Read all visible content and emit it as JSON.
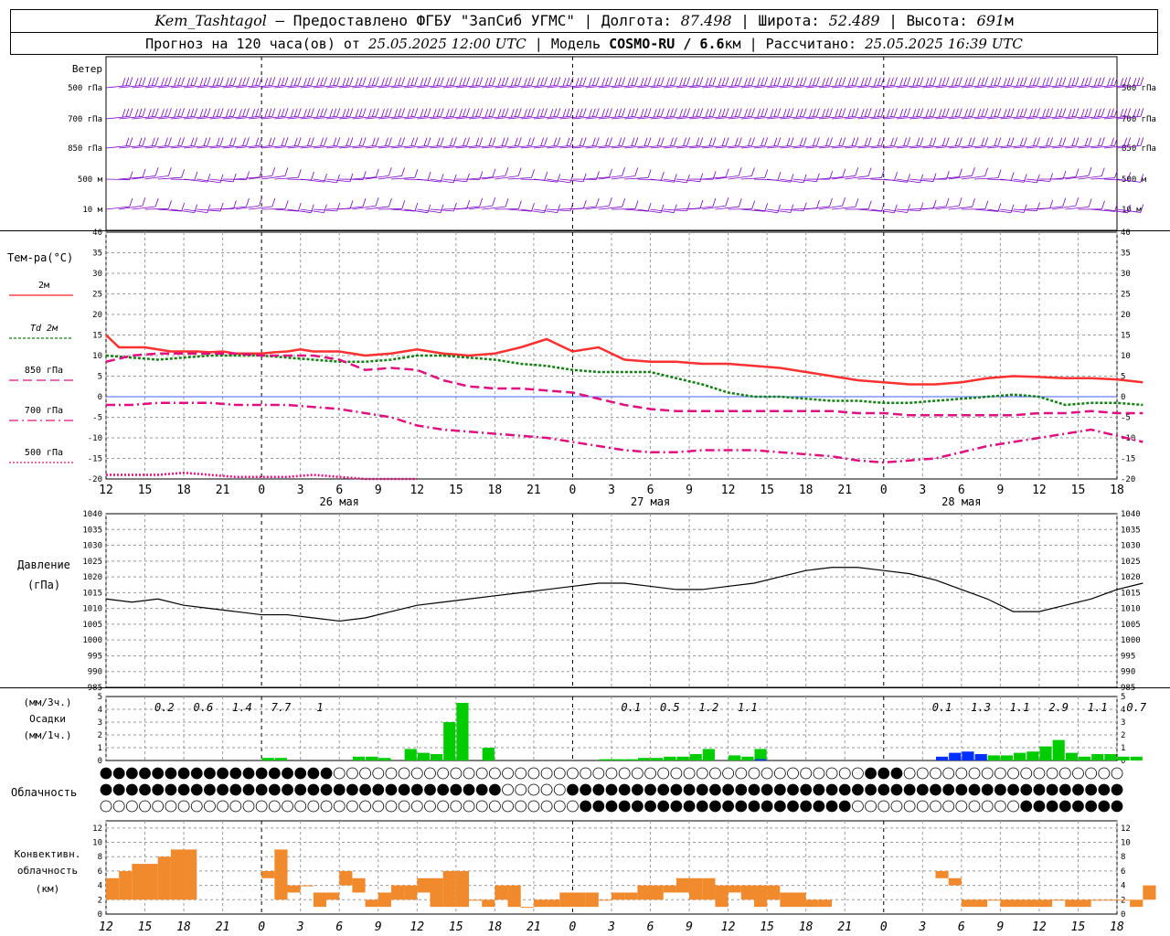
{
  "header": {
    "station": "Kem_Tashtagol",
    "sep1": " — Предоставлено ФГБУ \"ЗапСиб УГМС\" | Долгота: ",
    "lon": "87.498",
    "sep2": " | Широта: ",
    "lat": "52.489",
    "sep3": " | Высота: ",
    "alt": "691",
    "alt_unit": "м",
    "fc_prefix": "Прогноз на 120 часа(ов) от ",
    "fc_time": "25.05.2025 12:00 UTC",
    "model_prefix": "  | Модель ",
    "model": "COSMO-RU / 6.6",
    "model_unit": "км",
    "calc_prefix": " | Рассчитано: ",
    "calc_time": "25.05.2025 16:39 UTC"
  },
  "time_axis": {
    "hour_labels": [
      "12",
      "15",
      "18",
      "21",
      "0",
      "3",
      "6",
      "9",
      "12",
      "15",
      "18",
      "21",
      "0",
      "3",
      "6",
      "9",
      "12",
      "15",
      "18",
      "21",
      "0",
      "3",
      "6",
      "9",
      "12",
      "15",
      "18"
    ],
    "day_labels": [
      {
        "label": "26 мая",
        "x": 18
      },
      {
        "label": "27 мая",
        "x": 42
      },
      {
        "label": "28 мая",
        "x": 66
      }
    ]
  },
  "wind_panel": {
    "title": "Ветер",
    "levels_left": [
      "500 гПа",
      "700 гПа",
      "850 гПа",
      "500 м",
      "10  м"
    ],
    "levels_right": [
      "500 гПа",
      "700 гПа",
      "850 гПа",
      "500 м",
      "10 м"
    ],
    "colors": {
      "barb": "#7a00c8",
      "line": "#7a00c8"
    }
  },
  "temp_panel": {
    "title": "Тем-ра(°C)",
    "legend": [
      {
        "label": "2м",
        "color": "#ff2020",
        "dash": ""
      },
      {
        "label": "Td  2м",
        "color": "#108010",
        "dash": "3,2"
      },
      {
        "label": "850 гПа",
        "color": "#e01080",
        "dash": "10,5"
      },
      {
        "label": "700 гПа",
        "color": "#e01080",
        "dash": "10,4,2,4"
      },
      {
        "label": "500 гПа",
        "color": "#e01080",
        "dash": "2,2"
      }
    ],
    "yticks": [
      "40",
      "35",
      "30",
      "25",
      "20",
      "15",
      "10",
      "5",
      "0",
      "-5",
      "-10",
      "-15",
      "-20"
    ]
  },
  "pressure_panel": {
    "title": "Давление",
    "unit": "(гПа)",
    "yticks": [
      "1040",
      "1035",
      "1030",
      "1025",
      "1020",
      "1015",
      "1010",
      "1005",
      "1000",
      "995",
      "990",
      "985"
    ]
  },
  "precip_panel": {
    "unit_top": "(мм/3ч.)",
    "title": "Осадки",
    "unit_bottom": "(мм/1ч.)",
    "yticks": [
      "5",
      "4",
      "3",
      "2",
      "1",
      "0"
    ],
    "totals": [
      {
        "x": 4.5,
        "label": "0.2"
      },
      {
        "x": 7.5,
        "label": "0.6"
      },
      {
        "x": 10.5,
        "label": "1.4"
      },
      {
        "x": 13.5,
        "label": "7.7"
      },
      {
        "x": 16.5,
        "label": "1"
      },
      {
        "x": 40.5,
        "label": "0.1"
      },
      {
        "x": 43.5,
        "label": "0.5"
      },
      {
        "x": 46.5,
        "label": "1.2"
      },
      {
        "x": 49.5,
        "label": "1.1"
      },
      {
        "x": 64.5,
        "label": "0.1"
      },
      {
        "x": 67.5,
        "label": "1.3"
      },
      {
        "x": 70.5,
        "label": "1.1"
      },
      {
        "x": 73.5,
        "label": "2.9"
      },
      {
        "x": 76.5,
        "label": "1.1"
      },
      {
        "x": 79.5,
        "label": "0.7"
      }
    ]
  },
  "cloud_panel": {
    "title": "Облачность"
  },
  "conv_panel": {
    "title_1": "Конвективн.",
    "title_2": "облачность",
    "unit": "(км)",
    "yticks": [
      "12",
      "10",
      "8",
      "6",
      "4",
      "2",
      "0"
    ]
  },
  "chart_data": [
    {
      "type": "line",
      "name": "temperature",
      "x_unit": "hours from 25.05.2025 12:00 UTC",
      "ylim": [
        -20,
        40
      ],
      "series": [
        {
          "name": "2м",
          "x": [
            0,
            1,
            2,
            3,
            4,
            5,
            6,
            7,
            8,
            9,
            10,
            11,
            12,
            13,
            14,
            15,
            16,
            17,
            18,
            19,
            20,
            22,
            24,
            26,
            28,
            30,
            32,
            34,
            36,
            38,
            40,
            42,
            44,
            46,
            48,
            50,
            52,
            54,
            56,
            58,
            60,
            62,
            64,
            66,
            68,
            70,
            72,
            74,
            76,
            78,
            80
          ],
          "y": [
            15,
            12,
            12,
            12,
            11.5,
            11,
            11,
            11,
            10.8,
            11,
            10.5,
            10.5,
            10.5,
            10.8,
            11,
            11.5,
            11,
            11,
            11,
            10.5,
            10,
            10.5,
            11.5,
            10.5,
            10,
            10.5,
            12,
            14,
            11,
            12,
            9,
            8.5,
            8.5,
            8,
            8,
            7.5,
            7,
            6,
            5,
            4,
            3.5,
            3,
            3,
            3.5,
            4.5,
            5,
            4.8,
            4.5,
            4.5,
            4.2,
            3.5
          ]
        },
        {
          "name": "Td 2м",
          "x": [
            0,
            2,
            4,
            6,
            8,
            10,
            12,
            14,
            16,
            18,
            20,
            22,
            24,
            26,
            28,
            30,
            32,
            34,
            36,
            38,
            40,
            42,
            44,
            46,
            48,
            50,
            52,
            54,
            56,
            58,
            60,
            62,
            64,
            66,
            68,
            70,
            72,
            74,
            76,
            78,
            80
          ],
          "y": [
            10,
            9.5,
            9,
            9.5,
            10,
            10,
            10,
            9.5,
            9,
            8.5,
            8.5,
            9,
            10,
            10,
            9.5,
            9,
            8,
            7.5,
            6.5,
            6,
            6,
            6,
            4.5,
            3,
            1,
            0,
            0,
            -0.5,
            -1,
            -1,
            -1.5,
            -1.5,
            -1,
            -0.5,
            0,
            0.5,
            0,
            -2,
            -1.5,
            -1.5,
            -2
          ]
        },
        {
          "name": "850 гПа",
          "x": [
            0,
            2,
            4,
            6,
            8,
            10,
            12,
            14,
            16,
            18,
            20,
            22,
            24,
            26,
            28,
            30,
            32,
            34,
            36,
            38,
            40,
            42,
            44,
            46,
            48,
            50,
            52,
            54,
            56,
            58,
            60,
            62,
            64,
            66,
            68,
            70,
            72,
            74,
            76,
            78,
            80
          ],
          "y": [
            8.5,
            10,
            10.5,
            10.5,
            10.5,
            10.5,
            10,
            10,
            10,
            9,
            6.5,
            7,
            6.5,
            4,
            2.5,
            2,
            2,
            1.5,
            1,
            -0.5,
            -2,
            -3,
            -3.5,
            -3.5,
            -3.5,
            -3.5,
            -3.5,
            -3.5,
            -3.5,
            -4,
            -4,
            -4.5,
            -4.5,
            -4.5,
            -4.5,
            -4.5,
            -4,
            -4,
            -3.5,
            -4,
            -4
          ]
        },
        {
          "name": "700 гПа",
          "x": [
            0,
            2,
            4,
            6,
            8,
            10,
            12,
            14,
            16,
            18,
            20,
            22,
            24,
            26,
            28,
            30,
            32,
            34,
            36,
            38,
            40,
            42,
            44,
            46,
            48,
            50,
            52,
            54,
            56,
            58,
            60,
            62,
            64,
            66,
            68,
            70,
            72,
            74,
            76,
            78,
            80
          ],
          "y": [
            -2,
            -2,
            -1.5,
            -1.5,
            -1.5,
            -2,
            -2,
            -2,
            -2.5,
            -3,
            -4,
            -5,
            -7,
            -8,
            -8.5,
            -9,
            -9.5,
            -10,
            -11,
            -12,
            -13,
            -13.5,
            -13.5,
            -13,
            -13,
            -13,
            -13.5,
            -14,
            -14.5,
            -15.5,
            -16,
            -15.5,
            -15,
            -13.5,
            -12,
            -11,
            -10,
            -9,
            -8,
            -9.5,
            -11
          ]
        },
        {
          "name": "500 гПа",
          "x": [
            0,
            2,
            4,
            6,
            8,
            10,
            12,
            14,
            16,
            18,
            20,
            22,
            24
          ],
          "y": [
            -19,
            -19,
            -19,
            -18.5,
            -19,
            -19.5,
            -19.5,
            -19.5,
            -19,
            -19.5,
            -20,
            -20,
            -20
          ]
        }
      ]
    },
    {
      "type": "line",
      "name": "pressure",
      "x_unit": "hours from 25.05.2025 12:00 UTC",
      "ylim": [
        985,
        1040
      ],
      "series": [
        {
          "name": "pressure",
          "x": [
            0,
            2,
            4,
            6,
            8,
            10,
            12,
            14,
            16,
            18,
            20,
            22,
            24,
            26,
            28,
            30,
            32,
            34,
            36,
            38,
            40,
            42,
            44,
            46,
            48,
            50,
            52,
            54,
            56,
            58,
            60,
            62,
            64,
            66,
            68,
            70,
            72,
            74,
            76,
            78,
            80
          ],
          "y": [
            1013,
            1012,
            1013,
            1011,
            1010,
            1009,
            1008,
            1008,
            1007,
            1006,
            1007,
            1009,
            1011,
            1012,
            1013,
            1014,
            1015,
            1016,
            1017,
            1018,
            1018,
            1017,
            1016,
            1016,
            1017,
            1018,
            1020,
            1022,
            1023,
            1023,
            1022,
            1021,
            1019,
            1016,
            1013,
            1009,
            1009,
            1011,
            1013,
            1016,
            1018
          ]
        }
      ]
    },
    {
      "type": "bar",
      "name": "precipitation",
      "x_unit": "hours from 25.05.2025 12:00 UTC",
      "ylim": [
        0,
        5
      ],
      "series": [
        {
          "name": "liquid",
          "color": "#00cc00",
          "x": [
            12,
            13,
            14,
            19,
            20,
            21,
            22,
            23,
            24,
            25,
            26,
            27,
            28,
            29,
            38,
            39,
            40,
            41,
            42,
            43,
            44,
            45,
            46,
            47,
            48,
            49,
            50,
            51,
            52,
            53,
            54,
            55,
            56,
            57,
            58,
            59,
            60,
            61,
            62,
            63,
            64,
            65,
            66,
            67,
            68,
            69,
            70,
            71,
            72,
            73,
            74,
            75,
            76,
            77,
            78,
            79
          ],
          "y": [
            0.2,
            0.2,
            0,
            0.3,
            0.3,
            0.2,
            0,
            0.9,
            0.6,
            0.5,
            3,
            4.5,
            0,
            1,
            0.1,
            0.1,
            0.1,
            0.2,
            0.2,
            0.3,
            0.3,
            0.5,
            0.9,
            0,
            0.4,
            0.3,
            0.9,
            0,
            0,
            0,
            0,
            0,
            0,
            0,
            0,
            0,
            0,
            0,
            0,
            0,
            0,
            0,
            0,
            0.4,
            0.4,
            0.4,
            0.6,
            0.7,
            1.1,
            1.6,
            0.6,
            0.3,
            0.5,
            0.5,
            0.3,
            0.3
          ]
        },
        {
          "name": "solid",
          "color": "#0030ff",
          "x": [
            50,
            64,
            65,
            66,
            67
          ],
          "y": [
            0.1,
            0.3,
            0.6,
            0.7,
            0.5
          ]
        }
      ]
    },
    {
      "type": "bar",
      "name": "convective_cloudiness",
      "x_unit": "hours from 25.05.2025 12:00 UTC",
      "ylim": [
        0,
        13
      ],
      "series": [
        {
          "name": "convective",
          "color": "#f08a2c",
          "x": [
            0,
            1,
            2,
            3,
            4,
            5,
            6,
            12,
            13,
            14,
            15,
            16,
            17,
            18,
            19,
            20,
            21,
            22,
            23,
            24,
            25,
            26,
            27,
            28,
            29,
            30,
            31,
            32,
            33,
            34,
            35,
            36,
            37,
            38,
            39,
            40,
            41,
            42,
            43,
            44,
            45,
            46,
            47,
            48,
            49,
            50,
            51,
            52,
            53,
            54,
            55,
            64,
            65,
            66,
            67,
            68,
            69,
            70,
            71,
            72,
            73,
            74,
            75,
            76,
            77,
            78,
            79,
            80
          ],
          "ybottom": [
            2,
            2,
            2,
            2,
            2,
            2,
            2,
            5,
            2,
            3,
            4,
            1,
            2,
            4,
            3,
            1,
            1,
            2,
            2,
            3,
            1,
            1,
            1,
            2,
            1,
            2,
            1,
            2,
            1,
            1,
            1,
            1,
            1,
            2,
            2,
            2,
            2,
            2,
            3,
            3,
            2,
            2,
            1,
            3,
            2,
            1,
            2,
            1,
            1,
            1,
            1,
            5,
            4,
            1,
            1,
            2,
            1,
            1,
            1,
            1,
            2,
            1,
            1,
            2,
            2,
            2,
            1,
            2
          ],
          "ytop": [
            5,
            6,
            7,
            7,
            8,
            9,
            9,
            6,
            9,
            4,
            4,
            3,
            3,
            6,
            5,
            2,
            3,
            4,
            4,
            5,
            5,
            6,
            6,
            2,
            2,
            4,
            4,
            1,
            2,
            2,
            3,
            3,
            3,
            2,
            3,
            3,
            4,
            4,
            4,
            5,
            5,
            5,
            4,
            4,
            4,
            4,
            4,
            3,
            3,
            2,
            2,
            6,
            5,
            2,
            2,
            2,
            2,
            2,
            2,
            2,
            2,
            2,
            2,
            2,
            2,
            2,
            2,
            4
          ]
        }
      ]
    }
  ]
}
